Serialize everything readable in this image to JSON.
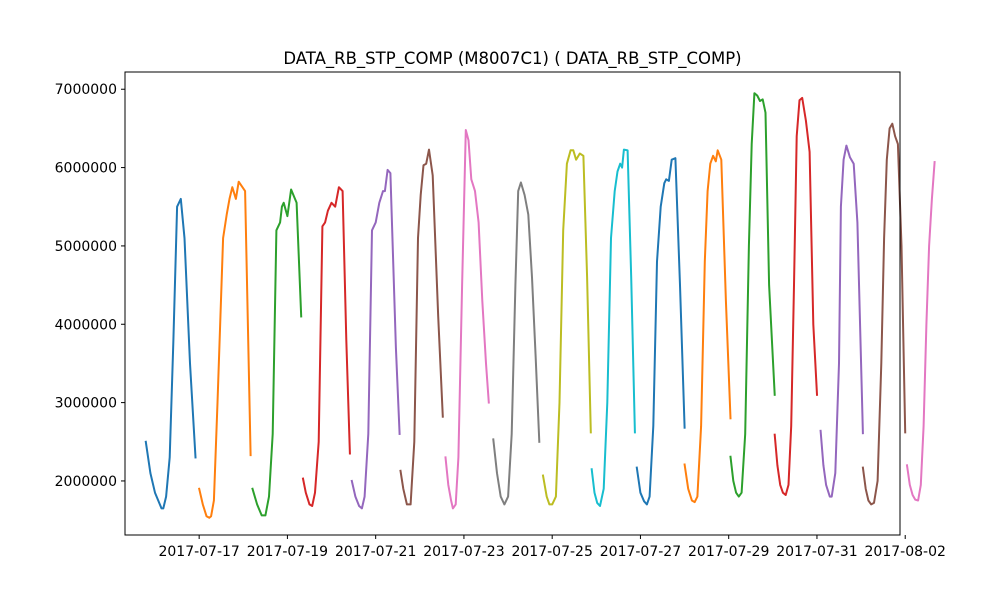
{
  "chart_data": {
    "type": "line",
    "title": "DATA_RB_STP_COMP (M8007C1) ( DATA_RB_STP_COMP)",
    "xlabel": "",
    "ylabel": "",
    "x_axis": "date",
    "xlim": [
      "2017-07-15T07:40",
      "2017-08-01T21:10"
    ],
    "ylim": [
      1310000,
      7220000
    ],
    "x_ticks": [
      "2017-07-17",
      "2017-07-19",
      "2017-07-21",
      "2017-07-23",
      "2017-07-25",
      "2017-07-27",
      "2017-07-29",
      "2017-07-31",
      "2017-08-02"
    ],
    "y_ticks": [
      2000000,
      3000000,
      4000000,
      5000000,
      6000000,
      7000000
    ],
    "y_tick_labels": [
      "2000000",
      "3000000",
      "4000000",
      "5000000",
      "6000000",
      "7000000"
    ],
    "grid": false,
    "legend": "none",
    "series": [
      {
        "color": "#1f77b4",
        "x": [
          "2017-07-15T19:00",
          "2017-07-15T21:30",
          "2017-07-16T00:00",
          "2017-07-16T03:30",
          "2017-07-16T04:30",
          "2017-07-16T06:00",
          "2017-07-16T08:00",
          "2017-07-16T10:00",
          "2017-07-16T12:00",
          "2017-07-16T14:00",
          "2017-07-16T16:00",
          "2017-07-16T19:00",
          "2017-07-16T22:00"
        ],
        "y": [
          2500000,
          2100000,
          1850000,
          1650000,
          1650000,
          1800000,
          2300000,
          3800000,
          5500000,
          5600000,
          5100000,
          3500000,
          2300000
        ]
      },
      {
        "color": "#ff7f0e",
        "x": [
          "2017-07-17T00:00",
          "2017-07-17T02:00",
          "2017-07-17T04:00",
          "2017-07-17T05:30",
          "2017-07-17T06:30",
          "2017-07-17T08:00",
          "2017-07-17T10:00",
          "2017-07-17T13:00",
          "2017-07-17T15:00",
          "2017-07-17T16:30",
          "2017-07-17T18:00",
          "2017-07-17T20:00",
          "2017-07-17T21:30",
          "2017-07-18T01:00",
          "2017-07-18T04:00"
        ],
        "y": [
          1900000,
          1700000,
          1550000,
          1530000,
          1550000,
          1750000,
          3000000,
          5100000,
          5400000,
          5600000,
          5750000,
          5600000,
          5820000,
          5700000,
          2330000
        ]
      },
      {
        "color": "#2ca02c",
        "x": [
          "2017-07-18T05:00",
          "2017-07-18T07:30",
          "2017-07-18T10:00",
          "2017-07-18T12:00",
          "2017-07-18T14:00",
          "2017-07-18T16:00",
          "2017-07-18T18:00",
          "2017-07-18T20:00",
          "2017-07-18T21:00",
          "2017-07-18T22:00",
          "2017-07-19T00:00",
          "2017-07-19T02:00",
          "2017-07-19T05:00",
          "2017-07-19T07:30"
        ],
        "y": [
          1900000,
          1700000,
          1560000,
          1560000,
          1800000,
          2600000,
          5200000,
          5300000,
          5500000,
          5550000,
          5380000,
          5720000,
          5550000,
          4100000
        ]
      },
      {
        "color": "#d62728",
        "x": [
          "2017-07-19T08:30",
          "2017-07-19T10:00",
          "2017-07-19T12:00",
          "2017-07-19T13:30",
          "2017-07-19T15:00",
          "2017-07-19T17:00",
          "2017-07-19T19:00",
          "2017-07-19T20:30",
          "2017-07-19T22:00",
          "2017-07-20T00:00",
          "2017-07-20T02:00",
          "2017-07-20T04:00",
          "2017-07-20T06:00",
          "2017-07-20T08:00",
          "2017-07-20T10:00"
        ],
        "y": [
          2030000,
          1850000,
          1700000,
          1680000,
          1850000,
          2500000,
          5250000,
          5300000,
          5450000,
          5550000,
          5500000,
          5750000,
          5700000,
          3800000,
          2350000
        ]
      },
      {
        "color": "#9467bd",
        "x": [
          "2017-07-20T11:00",
          "2017-07-20T13:00",
          "2017-07-20T15:00",
          "2017-07-20T16:30",
          "2017-07-20T18:00",
          "2017-07-20T20:00",
          "2017-07-20T22:00",
          "2017-07-21T00:00",
          "2017-07-21T02:00",
          "2017-07-21T04:00",
          "2017-07-21T05:00",
          "2017-07-21T06:30",
          "2017-07-21T08:00",
          "2017-07-21T11:00",
          "2017-07-21T13:00"
        ],
        "y": [
          2000000,
          1800000,
          1680000,
          1650000,
          1800000,
          2600000,
          5200000,
          5300000,
          5550000,
          5700000,
          5700000,
          5970000,
          5930000,
          3700000,
          2600000
        ]
      },
      {
        "color": "#8c564b",
        "x": [
          "2017-07-21T13:30",
          "2017-07-21T15:00",
          "2017-07-21T17:00",
          "2017-07-21T19:00",
          "2017-07-21T21:00",
          "2017-07-21T23:00",
          "2017-07-22T00:30",
          "2017-07-22T02:00",
          "2017-07-22T03:30",
          "2017-07-22T05:00",
          "2017-07-22T07:00",
          "2017-07-22T10:00",
          "2017-07-22T12:30"
        ],
        "y": [
          2130000,
          1900000,
          1700000,
          1700000,
          2500000,
          5100000,
          5650000,
          6030000,
          6050000,
          6230000,
          5900000,
          4100000,
          2820000
        ]
      },
      {
        "color": "#e377c2",
        "x": [
          "2017-07-22T14:00",
          "2017-07-22T15:30",
          "2017-07-22T17:00",
          "2017-07-22T18:00",
          "2017-07-22T19:30",
          "2017-07-22T21:00",
          "2017-07-22T23:00",
          "2017-07-23T01:00",
          "2017-07-23T02:30",
          "2017-07-23T04:00",
          "2017-07-23T06:00",
          "2017-07-23T08:00",
          "2017-07-23T10:00",
          "2017-07-23T12:00",
          "2017-07-23T13:30"
        ],
        "y": [
          2300000,
          1950000,
          1750000,
          1650000,
          1700000,
          2300000,
          4500000,
          6480000,
          6350000,
          5850000,
          5700000,
          5300000,
          4300000,
          3500000,
          3000000
        ]
      },
      {
        "color": "#7f7f7f",
        "x": [
          "2017-07-23T16:00",
          "2017-07-23T18:00",
          "2017-07-23T20:00",
          "2017-07-23T22:00",
          "2017-07-24T00:00",
          "2017-07-24T02:00",
          "2017-07-24T04:00",
          "2017-07-24T05:30",
          "2017-07-24T07:00",
          "2017-07-24T09:00",
          "2017-07-24T11:00",
          "2017-07-24T13:00",
          "2017-07-24T15:00",
          "2017-07-24T17:00"
        ],
        "y": [
          2530000,
          2100000,
          1800000,
          1700000,
          1800000,
          2600000,
          4500000,
          5700000,
          5810000,
          5650000,
          5400000,
          4600000,
          3600000,
          2500000
        ]
      },
      {
        "color": "#bcbd22",
        "x": [
          "2017-07-24T19:00",
          "2017-07-24T21:00",
          "2017-07-24T22:30",
          "2017-07-25T00:00",
          "2017-07-25T02:00",
          "2017-07-25T04:00",
          "2017-07-25T06:00",
          "2017-07-25T08:00",
          "2017-07-25T10:00",
          "2017-07-25T11:30",
          "2017-07-25T13:00",
          "2017-07-25T15:00",
          "2017-07-25T17:00",
          "2017-07-25T19:00",
          "2017-07-25T21:00"
        ],
        "y": [
          2070000,
          1800000,
          1700000,
          1700000,
          1800000,
          3000000,
          5200000,
          6050000,
          6220000,
          6220000,
          6100000,
          6180000,
          6150000,
          4600000,
          2620000
        ]
      },
      {
        "color": "#17becf",
        "x": [
          "2017-07-25T21:30",
          "2017-07-25T23:00",
          "2017-07-26T00:30",
          "2017-07-26T02:00",
          "2017-07-26T04:00",
          "2017-07-26T06:00",
          "2017-07-26T08:00",
          "2017-07-26T10:00",
          "2017-07-26T11:30",
          "2017-07-26T13:00",
          "2017-07-26T14:00",
          "2017-07-26T15:00",
          "2017-07-26T17:00",
          "2017-07-26T19:00",
          "2017-07-26T21:00"
        ],
        "y": [
          2150000,
          1850000,
          1720000,
          1680000,
          1900000,
          3000000,
          5100000,
          5700000,
          5950000,
          6050000,
          6000000,
          6230000,
          6220000,
          4600000,
          2620000
        ]
      },
      {
        "color": "#1f77b4",
        "x": [
          "2017-07-26T22:00",
          "2017-07-27T00:00",
          "2017-07-27T02:00",
          "2017-07-27T03:30",
          "2017-07-27T05:00",
          "2017-07-27T07:00",
          "2017-07-27T09:00",
          "2017-07-27T11:00",
          "2017-07-27T13:00",
          "2017-07-27T14:00",
          "2017-07-27T15:30",
          "2017-07-27T17:00",
          "2017-07-27T19:00",
          "2017-07-27T21:30",
          "2017-07-28T00:00"
        ],
        "y": [
          2170000,
          1850000,
          1740000,
          1700000,
          1800000,
          2700000,
          4800000,
          5500000,
          5800000,
          5850000,
          5830000,
          6100000,
          6120000,
          4500000,
          2680000
        ]
      },
      {
        "color": "#ff7f0e",
        "x": [
          "2017-07-28T00:00",
          "2017-07-28T02:00",
          "2017-07-28T04:00",
          "2017-07-28T05:30",
          "2017-07-28T07:00",
          "2017-07-28T09:00",
          "2017-07-28T11:00",
          "2017-07-28T12:30",
          "2017-07-28T14:00",
          "2017-07-28T15:30",
          "2017-07-28T17:00",
          "2017-07-28T18:00",
          "2017-07-28T20:00",
          "2017-07-28T22:30",
          "2017-07-29T01:00"
        ],
        "y": [
          2210000,
          1900000,
          1750000,
          1730000,
          1800000,
          2700000,
          4800000,
          5700000,
          6050000,
          6150000,
          6080000,
          6220000,
          6100000,
          4300000,
          2800000
        ]
      },
      {
        "color": "#2ca02c",
        "x": [
          "2017-07-29T01:00",
          "2017-07-29T02:30",
          "2017-07-29T04:00",
          "2017-07-29T05:30",
          "2017-07-29T07:00",
          "2017-07-29T09:00",
          "2017-07-29T11:00",
          "2017-07-29T12:30",
          "2017-07-29T14:00",
          "2017-07-29T15:30",
          "2017-07-29T17:00",
          "2017-07-29T18:30",
          "2017-07-29T20:00",
          "2017-07-29T22:00",
          "2017-07-30T01:00"
        ],
        "y": [
          2310000,
          2000000,
          1850000,
          1800000,
          1850000,
          2600000,
          5000000,
          6300000,
          6950000,
          6920000,
          6850000,
          6870000,
          6700000,
          4500000,
          3100000
        ]
      },
      {
        "color": "#d62728",
        "x": [
          "2017-07-30T01:00",
          "2017-07-30T02:30",
          "2017-07-30T04:00",
          "2017-07-30T05:30",
          "2017-07-30T07:00",
          "2017-07-30T08:30",
          "2017-07-30T10:00",
          "2017-07-30T11:30",
          "2017-07-30T13:00",
          "2017-07-30T14:30",
          "2017-07-30T16:00",
          "2017-07-30T18:00",
          "2017-07-30T20:00",
          "2017-07-30T22:00",
          "2017-07-31T00:00"
        ],
        "y": [
          2590000,
          2200000,
          1950000,
          1850000,
          1820000,
          1950000,
          2700000,
          4500000,
          6400000,
          6860000,
          6890000,
          6600000,
          6200000,
          4000000,
          3100000
        ]
      },
      {
        "color": "#9467bd",
        "x": [
          "2017-07-31T02:00",
          "2017-07-31T03:30",
          "2017-07-31T05:00",
          "2017-07-31T07:00",
          "2017-07-31T08:00",
          "2017-07-31T10:00",
          "2017-07-31T12:00",
          "2017-07-31T13:00",
          "2017-07-31T14:30",
          "2017-07-31T16:00",
          "2017-07-31T18:00",
          "2017-07-31T20:00",
          "2017-07-31T22:00",
          "2017-08-01T01:00"
        ],
        "y": [
          2640000,
          2200000,
          1950000,
          1800000,
          1800000,
          2100000,
          3500000,
          5500000,
          6100000,
          6280000,
          6130000,
          6050000,
          5300000,
          2610000
        ]
      },
      {
        "color": "#8c564b",
        "x": [
          "2017-08-01T01:00",
          "2017-08-01T02:30",
          "2017-08-01T04:00",
          "2017-08-01T05:30",
          "2017-08-01T07:00",
          "2017-08-01T09:00",
          "2017-08-01T11:00",
          "2017-08-01T12:30",
          "2017-08-01T14:00",
          "2017-08-01T15:30",
          "2017-08-01T17:00",
          "2017-08-01T18:30",
          "2017-08-01T20:00",
          "2017-08-01T22:00",
          "2017-08-02T00:00"
        ],
        "y": [
          2170000,
          1900000,
          1750000,
          1700000,
          1720000,
          2000000,
          3500000,
          5100000,
          6100000,
          6500000,
          6560000,
          6400000,
          6300000,
          5000000,
          2620000
        ]
      },
      {
        "color": "#e377c2",
        "x": [
          "2017-08-02T01:00",
          "2017-08-02T02:30",
          "2017-08-02T04:00",
          "2017-08-02T05:30",
          "2017-08-02T07:00",
          "2017-08-02T08:30",
          "2017-08-02T10:00",
          "2017-08-02T11:30",
          "2017-08-02T13:00",
          "2017-08-02T14:30",
          "2017-08-02T16:00"
        ],
        "y": [
          2200000,
          1950000,
          1820000,
          1760000,
          1750000,
          1950000,
          2700000,
          4000000,
          5000000,
          5600000,
          6070000
        ]
      }
    ]
  }
}
